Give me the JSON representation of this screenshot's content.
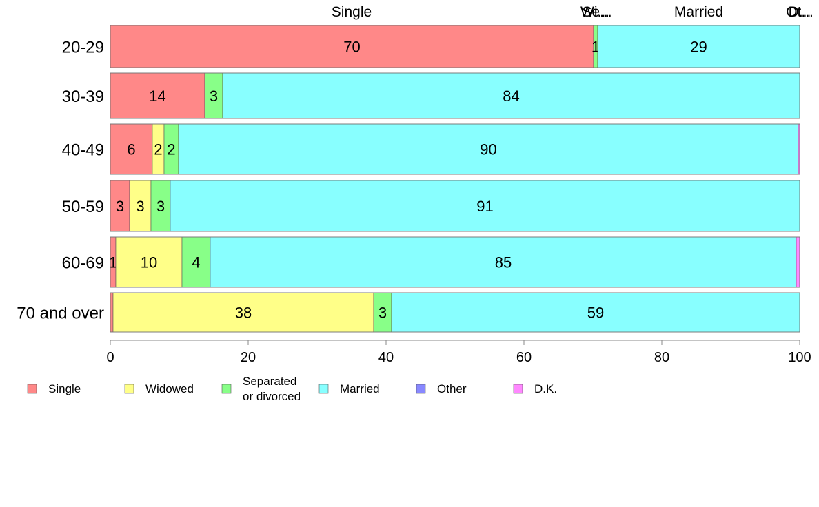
{
  "chart_data": {
    "type": "bar",
    "orientation": "horizontal",
    "stacked": true,
    "categories": [
      "20-29",
      "30-39",
      "40-49",
      "50-59",
      "60-69",
      "70 and over"
    ],
    "series": [
      {
        "name": "Single",
        "color": "#ff8888",
        "values": [
          70.1,
          13.7,
          6.1,
          2.8,
          0.8,
          0.4
        ]
      },
      {
        "name": "Widowed",
        "color": "#ffff88",
        "values": [
          0,
          0,
          1.7,
          3.1,
          9.6,
          37.8
        ]
      },
      {
        "name": "Separated\n or divorced",
        "color": "#88ff88",
        "values": [
          0.6,
          2.6,
          2.1,
          2.8,
          4.1,
          2.6
        ]
      },
      {
        "name": "Married",
        "color": "#88ffff",
        "values": [
          29.3,
          83.7,
          89.9,
          91.3,
          85.0,
          59.2
        ]
      },
      {
        "name": "Other",
        "color": "#8888ff",
        "values": [
          0,
          0,
          0,
          0,
          0,
          0
        ]
      },
      {
        "name": "D.K.",
        "color": "#ff88ff",
        "values": [
          0,
          0,
          0.2,
          0,
          0.5,
          0
        ]
      }
    ],
    "data_labels": [
      [
        "70",
        "",
        "1",
        "29",
        "",
        ""
      ],
      [
        "14",
        "",
        "3",
        "84",
        "",
        ""
      ],
      [
        "6",
        "2",
        "2",
        "90",
        "",
        ""
      ],
      [
        "3",
        "3",
        "3",
        "91",
        "",
        ""
      ],
      [
        "1",
        "10",
        "4",
        "85",
        "",
        ""
      ],
      [
        "",
        "38",
        "3",
        "59",
        "",
        ""
      ]
    ],
    "top_labels": [
      {
        "text": "Single",
        "x": 35
      },
      {
        "text": "Wi...",
        "x": 70.3
      },
      {
        "text": "Se...",
        "x": 70.6
      },
      {
        "text": "Married",
        "x": 85.35
      },
      {
        "text": "Ot...",
        "x": 100
      },
      {
        "text": "D...",
        "x": 100
      }
    ],
    "x_ticks": [
      "0",
      "20",
      "40",
      "60",
      "80",
      "100"
    ],
    "xlim": [
      0,
      100
    ],
    "xlabel": "",
    "ylabel": "",
    "title": "",
    "legend_position": "bottom-left",
    "grid": false
  }
}
